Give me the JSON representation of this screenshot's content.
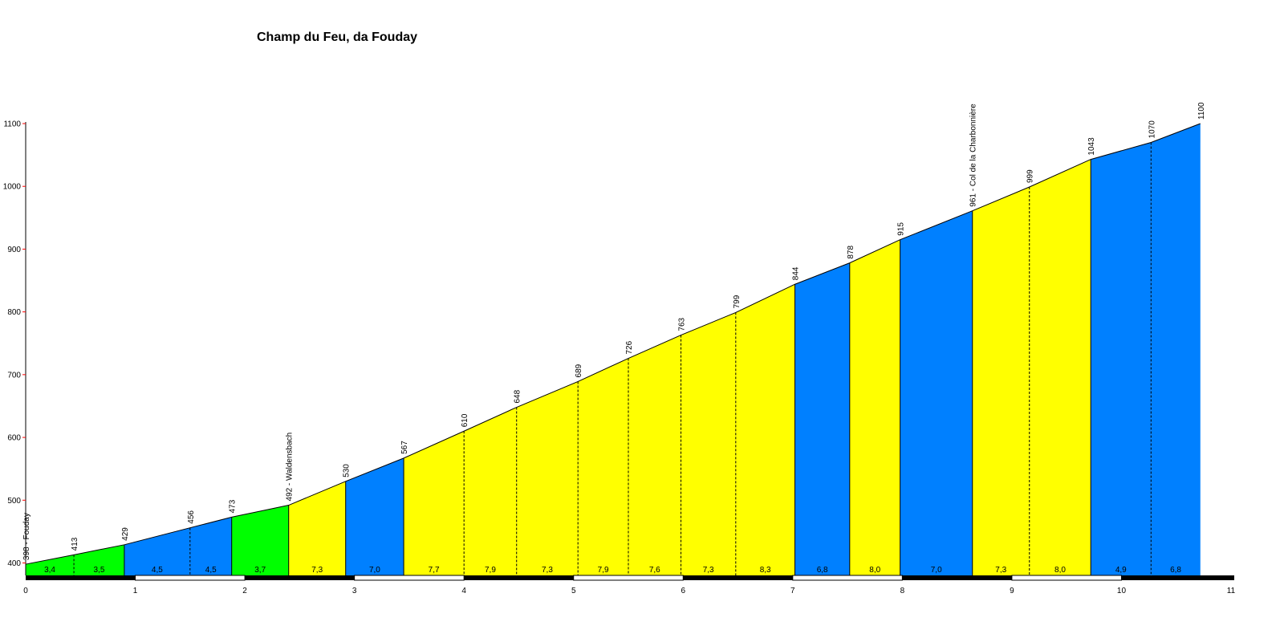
{
  "chart_data": {
    "type": "area",
    "title": "Champ du Feu, da Fouday",
    "xlabel": "",
    "ylabel": "",
    "xlim": [
      0,
      11
    ],
    "ylim": [
      400,
      1100
    ],
    "x_ticks": [
      0,
      1,
      2,
      3,
      4,
      5,
      6,
      7,
      8,
      9,
      10,
      11
    ],
    "y_ticks": [
      400,
      500,
      600,
      700,
      800,
      900,
      1000,
      1100
    ],
    "colors": {
      "green": "#00ff00",
      "blue": "#0080ff",
      "yellow": "#ffff00",
      "tick": "#ff0000",
      "axis": "#000000"
    },
    "points": [
      {
        "x": 0.0,
        "elev": 398,
        "label": "398 - Fouday"
      },
      {
        "x": 0.44,
        "elev": 413,
        "label": "413"
      },
      {
        "x": 0.9,
        "elev": 429,
        "label": "429"
      },
      {
        "x": 1.5,
        "elev": 456,
        "label": "456"
      },
      {
        "x": 1.88,
        "elev": 473,
        "label": "473"
      },
      {
        "x": 2.4,
        "elev": 492,
        "label": "492 - Waldensbach"
      },
      {
        "x": 2.92,
        "elev": 530,
        "label": "530"
      },
      {
        "x": 3.45,
        "elev": 567,
        "label": "567"
      },
      {
        "x": 4.0,
        "elev": 610,
        "label": "610"
      },
      {
        "x": 4.48,
        "elev": 648,
        "label": "648"
      },
      {
        "x": 5.04,
        "elev": 689,
        "label": "689"
      },
      {
        "x": 5.5,
        "elev": 726,
        "label": "726"
      },
      {
        "x": 5.98,
        "elev": 763,
        "label": "763"
      },
      {
        "x": 6.48,
        "elev": 799,
        "label": "799"
      },
      {
        "x": 7.02,
        "elev": 844,
        "label": "844"
      },
      {
        "x": 7.52,
        "elev": 878,
        "label": "878"
      },
      {
        "x": 7.98,
        "elev": 915,
        "label": "915"
      },
      {
        "x": 8.64,
        "elev": 961,
        "label": "961 - Col de la Charbonnière"
      },
      {
        "x": 9.16,
        "elev": 999,
        "label": "999"
      },
      {
        "x": 9.72,
        "elev": 1043,
        "label": "1043"
      },
      {
        "x": 10.27,
        "elev": 1070,
        "label": "1070"
      },
      {
        "x": 10.72,
        "elev": 1100,
        "label": "1100"
      }
    ],
    "segments": [
      {
        "gradient": "3,4",
        "color": "green"
      },
      {
        "gradient": "3,5",
        "color": "green"
      },
      {
        "gradient": "4,5",
        "color": "blue"
      },
      {
        "gradient": "4,5",
        "color": "blue"
      },
      {
        "gradient": "3,7",
        "color": "green"
      },
      {
        "gradient": "7,3",
        "color": "yellow"
      },
      {
        "gradient": "7,0",
        "color": "blue"
      },
      {
        "gradient": "7,7",
        "color": "yellow"
      },
      {
        "gradient": "7,9",
        "color": "yellow"
      },
      {
        "gradient": "7,3",
        "color": "yellow"
      },
      {
        "gradient": "7,9",
        "color": "yellow"
      },
      {
        "gradient": "7,6",
        "color": "yellow"
      },
      {
        "gradient": "7,3",
        "color": "yellow"
      },
      {
        "gradient": "8,3",
        "color": "yellow"
      },
      {
        "gradient": "6,8",
        "color": "blue"
      },
      {
        "gradient": "8,0",
        "color": "yellow"
      },
      {
        "gradient": "7,0",
        "color": "blue"
      },
      {
        "gradient": "7,3",
        "color": "yellow"
      },
      {
        "gradient": "8,0",
        "color": "yellow"
      },
      {
        "gradient": "4,9",
        "color": "blue"
      },
      {
        "gradient": "6,8",
        "color": "blue"
      }
    ]
  }
}
